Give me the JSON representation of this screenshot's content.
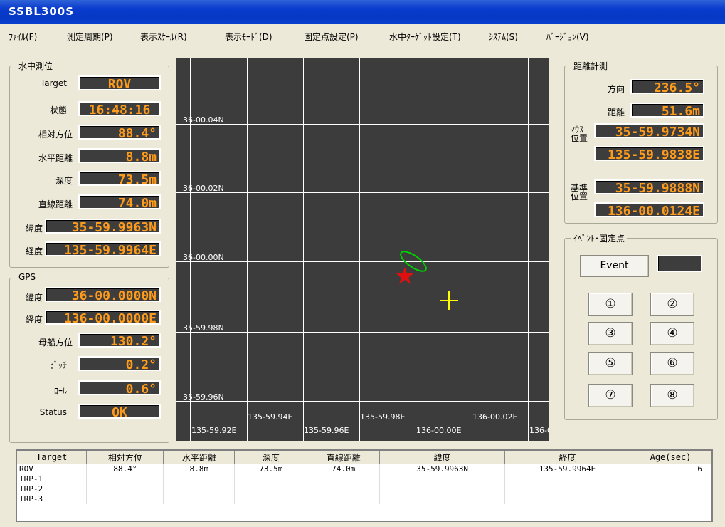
{
  "window": {
    "title": "SSBL300S"
  },
  "menu": [
    "ﾌｧｲﾙ(F)",
    "測定周期(P)",
    "表示ｽｹｰﾙ(R)",
    "表示ﾓｰﾄﾞ(D)",
    "固定点設定(P)",
    "水中ﾀｰｹﾞｯﾄ設定(T)",
    "ｼｽﾃﾑ(S)",
    "ﾊﾞｰｼﾞｮﾝ(V)"
  ],
  "underwater": {
    "title": "水中測位",
    "target_label": "Target",
    "target": "ROV",
    "status_label": "状態",
    "status": "16:48:16",
    "rel_bearing_label": "相対方位",
    "rel_bearing": "88.4°",
    "horiz_dist_label": "水平距離",
    "horiz_dist": "8.8m",
    "depth_label": "深度",
    "depth": "73.5m",
    "slant_label": "直線距離",
    "slant": "74.0m",
    "lat_label": "緯度",
    "lat": "35-59.9963N",
    "lon_label": "経度",
    "lon": "135-59.9964E"
  },
  "gps": {
    "title": "GPS",
    "lat_label": "緯度",
    "lat": "36-00.0000N",
    "lon_label": "経度",
    "lon": "136-00.0000E",
    "heading_label": "母船方位",
    "heading": "130.2°",
    "pitch_label": "ﾋﾟｯﾁ",
    "pitch": "0.2°",
    "roll_label": "ﾛｰﾙ",
    "roll": "0.6°",
    "status_label": "Status",
    "status": "OK"
  },
  "distance": {
    "title": "距離計測",
    "dir_label": "方向",
    "dir": "236.5°",
    "dist_label": "距離",
    "dist": "51.6m",
    "mouse_label_1": "ﾏｳｽ",
    "mouse_label_2": "位置",
    "mouse_lat": "35-59.9734N",
    "mouse_lon": "135-59.9838E",
    "ref_label_1": "基準",
    "ref_label_2": "位置",
    "ref_lat": "35-59.9888N",
    "ref_lon": "136-00.0124E"
  },
  "events": {
    "title": "ｲﾍﾞﾝﾄ･固定点",
    "event_button": "Event",
    "points": [
      "①",
      "②",
      "③",
      "④",
      "⑤",
      "⑥",
      "⑦",
      "⑧"
    ]
  },
  "plot": {
    "lat_labels": [
      "36-00.04N",
      "36-00.02N",
      "36-00.00N",
      "35-59.98N",
      "35-59.96N"
    ],
    "lon_labels_upper": [
      "135-59.94E",
      "135-59.98E",
      "136-00.02E"
    ],
    "lon_labels_lower": [
      "135-59.92E",
      "135-59.96E",
      "136-00.00E",
      "136-0"
    ],
    "colors": {
      "background": "#3c3c3c",
      "grid": "#ffffff",
      "vessel": "#00d000",
      "rov": "#e01010",
      "reference": "#ffff00"
    }
  },
  "table": {
    "headers": [
      "Target",
      "相対方位",
      "水平距離",
      "深度",
      "直線距離",
      "緯度",
      "経度",
      "Age(sec)"
    ],
    "rows": [
      [
        "ROV",
        "88.4°",
        "8.8m",
        "73.5m",
        "74.0m",
        "35-59.9963N",
        "135-59.9964E",
        "6"
      ],
      [
        "TRP-1",
        "",
        "",
        "",
        "",
        "",
        "",
        ""
      ],
      [
        "TRP-2",
        "",
        "",
        "",
        "",
        "",
        "",
        ""
      ],
      [
        "TRP-3",
        "",
        "",
        "",
        "",
        "",
        "",
        ""
      ]
    ]
  }
}
